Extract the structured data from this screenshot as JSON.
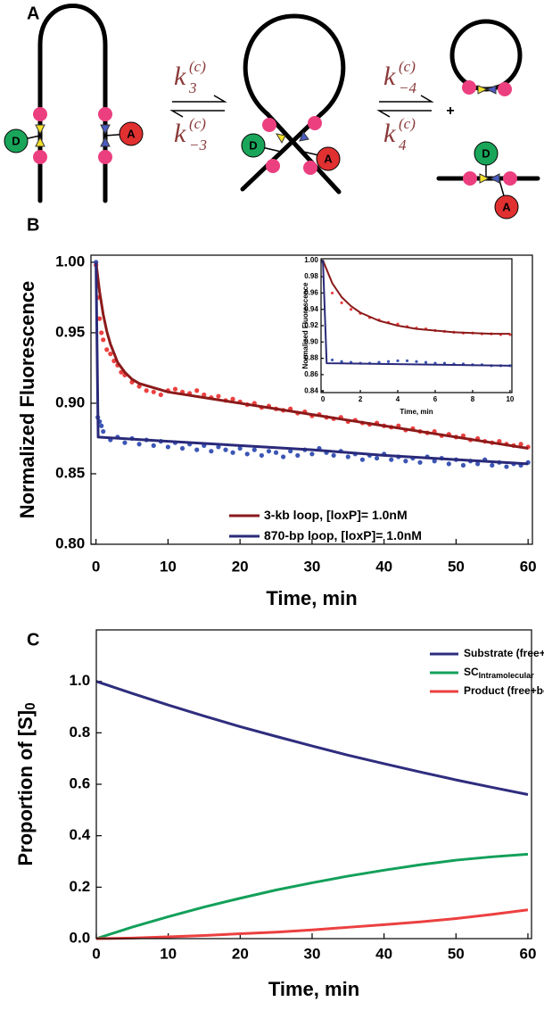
{
  "panel_a": {
    "label": "A",
    "donor": "D",
    "acceptor": "A",
    "plus": "+",
    "rates": [
      {
        "k": "k",
        "sub": "3",
        "sup": "(c)"
      },
      {
        "k": "k",
        "sub": "−3",
        "sup": "(c)"
      },
      {
        "k": "k",
        "sub": "−4",
        "sup": "(c)"
      },
      {
        "k": "k",
        "sub": "4",
        "sup": "(c)"
      }
    ]
  },
  "chart_data": [
    {
      "type": "scatter",
      "panel": "B",
      "x_label": "Time, min",
      "y_label": "Normalized Fluorescence",
      "xlim": [
        -0.7,
        60.6
      ],
      "xticks": [
        0,
        10,
        20,
        30,
        40,
        50,
        60
      ],
      "ylim": [
        0.8,
        1.005
      ],
      "yticks": [
        {
          "value": 0.8,
          "label": "0.80"
        },
        {
          "value": 0.85,
          "label": "0.85"
        },
        {
          "value": 0.9,
          "label": "0.90"
        },
        {
          "value": 0.95,
          "label": "0.95"
        },
        {
          "value": 1.0,
          "label": "1.00"
        }
      ],
      "legend": "lower right",
      "series": [
        {
          "mode": "markers",
          "color": "#ec4040",
          "x": [
            0,
            0.25,
            0.5,
            0.75,
            1,
            1.5,
            2,
            2.5,
            3,
            3.5,
            4,
            5,
            6,
            7,
            8,
            9,
            10,
            11,
            12,
            13,
            14,
            15,
            16,
            17,
            18,
            19,
            20,
            21,
            22,
            23,
            24,
            25,
            26,
            27,
            28,
            29,
            30,
            31,
            32,
            33,
            34,
            35,
            36,
            37,
            38,
            39,
            40,
            41,
            42,
            43,
            44,
            45,
            46,
            47,
            48,
            49,
            50,
            51,
            52,
            53,
            54,
            55,
            56,
            57,
            58,
            59,
            60
          ],
          "values": [
            0.998,
            0.975,
            0.96,
            0.95,
            0.945,
            0.938,
            0.935,
            0.93,
            0.927,
            0.922,
            0.92,
            0.915,
            0.912,
            0.909,
            0.908,
            0.906,
            0.909,
            0.91,
            0.908,
            0.907,
            0.909,
            0.906,
            0.904,
            0.905,
            0.902,
            0.903,
            0.901,
            0.899,
            0.9,
            0.897,
            0.898,
            0.896,
            0.895,
            0.896,
            0.893,
            0.894,
            0.891,
            0.892,
            0.89,
            0.889,
            0.89,
            0.887,
            0.888,
            0.886,
            0.885,
            0.886,
            0.884,
            0.883,
            0.884,
            0.881,
            0.882,
            0.88,
            0.879,
            0.88,
            0.877,
            0.878,
            0.876,
            0.877,
            0.874,
            0.875,
            0.873,
            0.872,
            0.873,
            0.871,
            0.87,
            0.871,
            0.869
          ]
        },
        {
          "mode": "markers",
          "color": "#3c56b5",
          "x": [
            0,
            0.25,
            0.5,
            0.75,
            1,
            2,
            3,
            4,
            5,
            6,
            7,
            8,
            9,
            10,
            11,
            12,
            13,
            14,
            15,
            16,
            17,
            18,
            19,
            20,
            21,
            22,
            23,
            24,
            25,
            26,
            27,
            28,
            29,
            30,
            31,
            32,
            33,
            34,
            35,
            36,
            37,
            38,
            39,
            40,
            41,
            42,
            43,
            44,
            45,
            46,
            47,
            48,
            49,
            50,
            51,
            52,
            53,
            54,
            55,
            56,
            57,
            58,
            59,
            60
          ],
          "values": [
            1.0,
            0.89,
            0.887,
            0.884,
            0.88,
            0.874,
            0.876,
            0.872,
            0.875,
            0.871,
            0.874,
            0.87,
            0.873,
            0.869,
            0.872,
            0.868,
            0.871,
            0.867,
            0.87,
            0.866,
            0.869,
            0.867,
            0.865,
            0.868,
            0.864,
            0.867,
            0.863,
            0.866,
            0.865,
            0.862,
            0.866,
            0.863,
            0.867,
            0.864,
            0.868,
            0.865,
            0.863,
            0.866,
            0.862,
            0.864,
            0.86,
            0.863,
            0.861,
            0.864,
            0.86,
            0.862,
            0.859,
            0.861,
            0.858,
            0.862,
            0.859,
            0.861,
            0.857,
            0.86,
            0.856,
            0.859,
            0.857,
            0.86,
            0.856,
            0.858,
            0.855,
            0.857,
            0.856,
            0.858
          ]
        },
        {
          "mode": "line",
          "name": "3-kb loop, [loxP]= 1.0nM",
          "color": "#8b1a1a",
          "x": [
            0,
            0.5,
            1,
            1.5,
            2,
            3,
            4,
            5,
            6,
            8,
            10,
            15,
            20,
            25,
            30,
            35,
            40,
            45,
            50,
            55,
            60
          ],
          "values": [
            1.0,
            0.979,
            0.963,
            0.951,
            0.942,
            0.929,
            0.922,
            0.917,
            0.914,
            0.911,
            0.908,
            0.904,
            0.9,
            0.896,
            0.892,
            0.888,
            0.884,
            0.88,
            0.876,
            0.872,
            0.868
          ]
        },
        {
          "mode": "line",
          "name": "870-bp loop, [loxP]= 1.0nM",
          "color": "#2a2a7a",
          "x": [
            0,
            0.3,
            10,
            20,
            30,
            40,
            50,
            60
          ],
          "values": [
            1.0,
            0.876,
            0.873,
            0.87,
            0.867,
            0.863,
            0.86,
            0.857
          ]
        }
      ]
    },
    {
      "type": "scatter",
      "x_label": "Time, min",
      "y_label": "Normalized Fluorescence",
      "xlim": [
        -0.1,
        10.1
      ],
      "xticks": [
        0,
        2,
        4,
        6,
        8,
        10
      ],
      "ylim": [
        0.838,
        1.002
      ],
      "yticks": [
        {
          "value": 0.84,
          "label": "0.84"
        },
        {
          "value": 0.86,
          "label": "0.86"
        },
        {
          "value": 0.88,
          "label": "0.88"
        },
        {
          "value": 0.9,
          "label": "0.90"
        },
        {
          "value": 0.92,
          "label": "0.92"
        },
        {
          "value": 0.94,
          "label": "0.94"
        },
        {
          "value": 0.96,
          "label": "0.96"
        },
        {
          "value": 0.98,
          "label": "0.98"
        },
        {
          "value": 1.0,
          "label": "1.00"
        }
      ],
      "series": [
        {
          "mode": "markers",
          "color": "#ec4040",
          "x": [
            0,
            0.5,
            1,
            1.5,
            2,
            2.5,
            3,
            3.5,
            4,
            4.5,
            5,
            5.5,
            6,
            6.5,
            7,
            7.5,
            8,
            8.5,
            9,
            9.5,
            10
          ],
          "values": [
            0.998,
            0.96,
            0.948,
            0.94,
            0.935,
            0.93,
            0.927,
            0.924,
            0.922,
            0.919,
            0.917,
            0.916,
            0.914,
            0.913,
            0.912,
            0.911,
            0.911,
            0.91,
            0.91,
            0.909,
            0.909
          ]
        },
        {
          "mode": "markers",
          "color": "#3c56b5",
          "x": [
            0,
            0.5,
            1,
            1.5,
            2,
            2.5,
            3,
            3.5,
            4,
            4.5,
            5,
            5.5,
            6,
            6.5,
            7,
            7.5,
            8,
            8.5,
            9,
            9.5,
            10
          ],
          "values": [
            0.998,
            0.878,
            0.876,
            0.875,
            0.874,
            0.874,
            0.875,
            0.876,
            0.877,
            0.877,
            0.876,
            0.875,
            0.874,
            0.874,
            0.873,
            0.873,
            0.872,
            0.872,
            0.871,
            0.871,
            0.871
          ]
        },
        {
          "mode": "line",
          "color": "#8b1a1a",
          "x": [
            0,
            0.5,
            1,
            1.5,
            2,
            3,
            4,
            5,
            6,
            7,
            8,
            9,
            10
          ],
          "values": [
            1.0,
            0.972,
            0.955,
            0.944,
            0.936,
            0.926,
            0.92,
            0.916,
            0.914,
            0.912,
            0.911,
            0.91,
            0.91
          ]
        },
        {
          "mode": "line",
          "color": "#2a2a7a",
          "x": [
            0,
            0.2,
            10
          ],
          "values": [
            1.0,
            0.874,
            0.871
          ]
        }
      ]
    },
    {
      "type": "line",
      "panel": "C",
      "x_label": "Time, min",
      "y_label": "Proportion of [S]",
      "y_label_sub": "0",
      "xlim": [
        0,
        60.5
      ],
      "xticks": [
        0,
        10,
        20,
        30,
        40,
        50,
        60
      ],
      "ylim": [
        0,
        1.2
      ],
      "yticks": [
        {
          "value": 0,
          "label": "0.0"
        },
        {
          "value": 0.2,
          "label": "0.2"
        },
        {
          "value": 0.4,
          "label": "0.4"
        },
        {
          "value": 0.6,
          "label": "0.6"
        },
        {
          "value": 0.8,
          "label": "0.8"
        },
        {
          "value": 1.0,
          "label": "1.0"
        }
      ],
      "legend": "upper right",
      "series": [
        {
          "mode": "line",
          "name": "Substrate (free+bound)",
          "color": "#2e2d7e",
          "x": [
            0,
            5,
            10,
            15,
            20,
            25,
            30,
            35,
            40,
            45,
            50,
            55,
            60
          ],
          "values": [
            1.0,
            0.953,
            0.908,
            0.865,
            0.824,
            0.786,
            0.749,
            0.713,
            0.68,
            0.648,
            0.617,
            0.588,
            0.56
          ]
        },
        {
          "mode": "line",
          "name": "SC",
          "name_sub": "Intramolecular",
          "color": "#13a05a",
          "x": [
            0,
            5,
            10,
            15,
            20,
            25,
            30,
            35,
            40,
            45,
            50,
            55,
            60
          ],
          "values": [
            0,
            0.045,
            0.085,
            0.123,
            0.157,
            0.189,
            0.217,
            0.243,
            0.266,
            0.287,
            0.305,
            0.318,
            0.328
          ]
        },
        {
          "mode": "line",
          "name": "Product (free+bound)",
          "color": "#ec4040",
          "x": [
            0,
            5,
            10,
            15,
            20,
            25,
            30,
            35,
            40,
            45,
            50,
            55,
            60
          ],
          "values": [
            0,
            0.002,
            0.007,
            0.012,
            0.019,
            0.025,
            0.034,
            0.044,
            0.054,
            0.065,
            0.078,
            0.094,
            0.112
          ]
        }
      ]
    }
  ]
}
